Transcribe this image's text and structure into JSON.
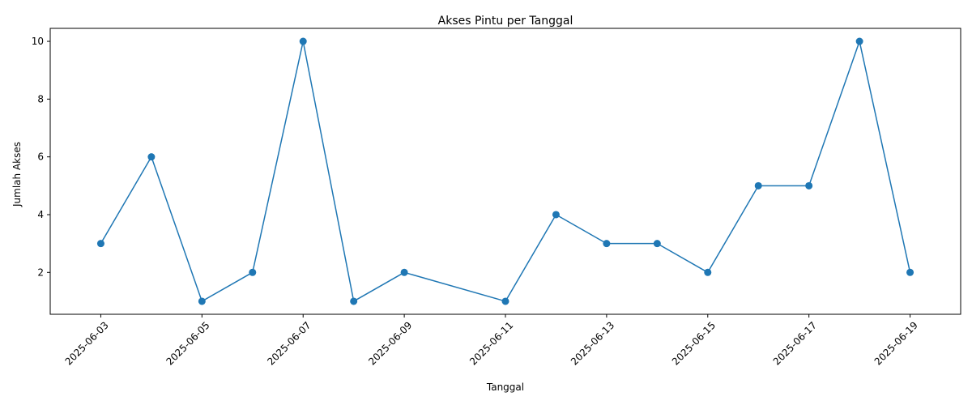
{
  "chart_data": {
    "type": "line",
    "title": "Akses Pintu per Tanggal",
    "xlabel": "Tanggal",
    "ylabel": "Jumlah Akses",
    "x": [
      "2025-06-03",
      "2025-06-04",
      "2025-06-05",
      "2025-06-06",
      "2025-06-07",
      "2025-06-08",
      "2025-06-09",
      "2025-06-11",
      "2025-06-12",
      "2025-06-13",
      "2025-06-14",
      "2025-06-15",
      "2025-06-16",
      "2025-06-17",
      "2025-06-18",
      "2025-06-19"
    ],
    "series": [
      {
        "values": [
          3,
          6,
          1,
          2,
          10,
          1,
          2,
          1,
          4,
          3,
          3,
          2,
          5,
          5,
          10,
          2
        ]
      }
    ],
    "xticks": [
      "2025-06-03",
      "2025-06-05",
      "2025-06-07",
      "2025-06-09",
      "2025-06-11",
      "2025-06-13",
      "2025-06-15",
      "2025-06-17",
      "2025-06-19"
    ],
    "yticks": [
      "2",
      "4",
      "6",
      "8",
      "10"
    ],
    "xlim": [
      "2025-06-02",
      "2025-06-20"
    ],
    "ylim": [
      0.55,
      10.45
    ],
    "grid": false,
    "marker": "circle",
    "colors": {
      "line": "#1f77b4",
      "marker": "#1f77b4"
    }
  }
}
